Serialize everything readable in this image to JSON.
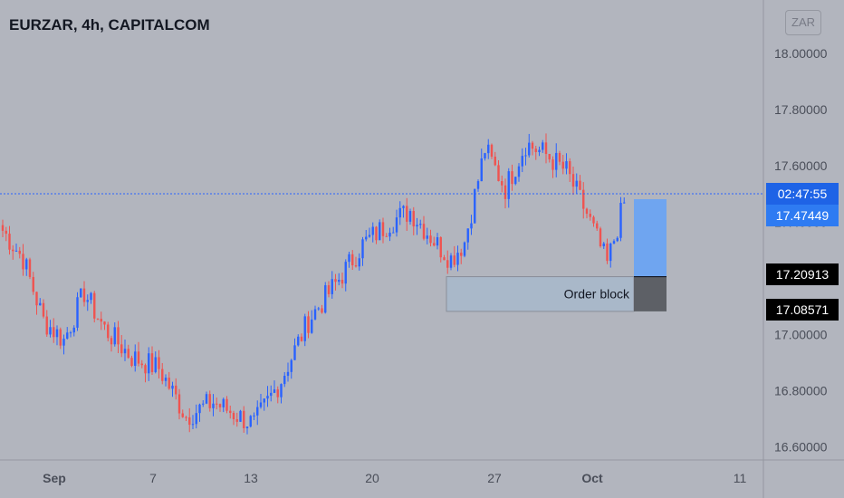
{
  "header": {
    "title": "EURZAR, 4h, CAPITALCOM",
    "currency": "ZAR"
  },
  "colors": {
    "background": "#b2b5be",
    "up": "#2962ff",
    "down": "#ef5350",
    "countdown_bg": "#1e63e6",
    "price_bg": "#2e7bf2",
    "black_tag": "#000000"
  },
  "price_tags": {
    "countdown": "02:47:55",
    "current_price": "17.47449",
    "level_high": "17.20913",
    "level_low": "17.08571"
  },
  "annotation": {
    "order_block_label": "Order block"
  },
  "chart_data": {
    "type": "candlestick",
    "title": "EURZAR, 4h, CAPITALCOM",
    "ylim": [
      16.55,
      18.1
    ],
    "y_ticks": [
      "18.00000",
      "17.80000",
      "17.60000",
      "17.40000",
      "17.20000",
      "17.00000",
      "16.80000",
      "16.60000"
    ],
    "x_ticks": [
      "Sep",
      "7",
      "13",
      "20",
      "27",
      "Oct",
      "11"
    ],
    "x_ticks_bold": [
      "Sep",
      "Oct"
    ],
    "last_close": 17.47449,
    "order_block": {
      "low": 17.08571,
      "high": 17.20913
    },
    "anchors": [
      {
        "i": 0,
        "c": 17.37
      },
      {
        "i": 6,
        "c": 17.27
      },
      {
        "i": 12,
        "c": 17.05
      },
      {
        "i": 18,
        "c": 16.98
      },
      {
        "i": 24,
        "c": 17.15
      },
      {
        "i": 30,
        "c": 17.02
      },
      {
        "i": 38,
        "c": 16.92
      },
      {
        "i": 46,
        "c": 16.88
      },
      {
        "i": 54,
        "c": 16.71
      },
      {
        "i": 62,
        "c": 16.76
      },
      {
        "i": 68,
        "c": 16.72
      },
      {
        "i": 74,
        "c": 16.68
      },
      {
        "i": 82,
        "c": 16.84
      },
      {
        "i": 90,
        "c": 17.05
      },
      {
        "i": 98,
        "c": 17.18
      },
      {
        "i": 106,
        "c": 17.32
      },
      {
        "i": 114,
        "c": 17.4
      },
      {
        "i": 120,
        "c": 17.44
      },
      {
        "i": 128,
        "c": 17.32
      },
      {
        "i": 132,
        "c": 17.27
      },
      {
        "i": 136,
        "c": 17.33
      },
      {
        "i": 142,
        "c": 17.66
      },
      {
        "i": 148,
        "c": 17.52
      },
      {
        "i": 154,
        "c": 17.68
      },
      {
        "i": 160,
        "c": 17.64
      },
      {
        "i": 166,
        "c": 17.58
      },
      {
        "i": 172,
        "c": 17.43
      },
      {
        "i": 178,
        "c": 17.25
      },
      {
        "i": 183,
        "c": 17.47
      }
    ]
  }
}
